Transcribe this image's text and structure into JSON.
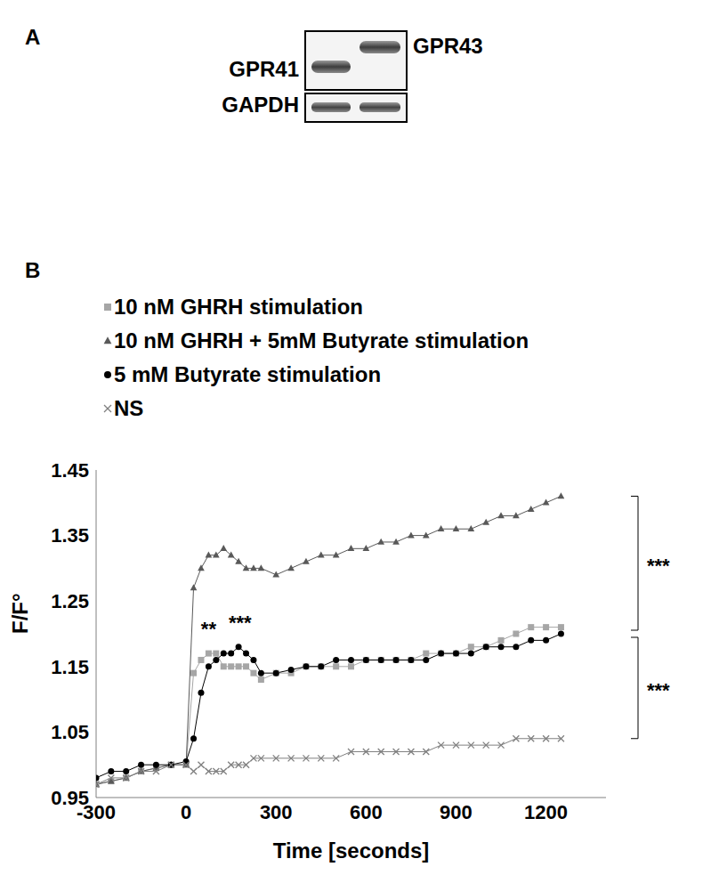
{
  "blot": {
    "panel": "A",
    "bands": [
      "GPR41",
      "GPR43"
    ],
    "loading_control": "GAPDH"
  },
  "chart_data": {
    "type": "line",
    "title": "B",
    "x_label": "Time [seconds]",
    "y_label": "F/F°",
    "x": [
      -300,
      -250,
      -200,
      -150,
      -100,
      -50,
      0,
      25,
      50,
      75,
      100,
      125,
      150,
      175,
      200,
      225,
      250,
      300,
      350,
      400,
      450,
      500,
      550,
      600,
      650,
      700,
      750,
      800,
      850,
      900,
      950,
      1000,
      1050,
      1100,
      1150,
      1200,
      1250
    ],
    "xlim": [
      -300,
      1400
    ],
    "xticks": [
      -300,
      0,
      300,
      600,
      900,
      1200
    ],
    "ylim": [
      0.95,
      1.45
    ],
    "yticks": [
      0.95,
      1.05,
      1.15,
      1.25,
      1.35,
      1.45
    ],
    "grid": false,
    "legend": "top",
    "series": [
      {
        "name": "10 nM GHRH stimulation",
        "color": "#a6a6a6",
        "marker": "square",
        "values": [
          0.97,
          0.975,
          0.98,
          0.99,
          0.995,
          1.0,
          1.0,
          1.14,
          1.16,
          1.17,
          1.17,
          1.15,
          1.15,
          1.15,
          1.15,
          1.14,
          1.13,
          1.14,
          1.14,
          1.15,
          1.15,
          1.15,
          1.15,
          1.16,
          1.16,
          1.16,
          1.16,
          1.17,
          1.17,
          1.17,
          1.18,
          1.18,
          1.19,
          1.2,
          1.21,
          1.21,
          1.21
        ]
      },
      {
        "name": "10 nM GHRH + 5mM Butyrate stimulation",
        "color": "#595959",
        "marker": "triangle",
        "values": [
          0.97,
          0.975,
          0.98,
          0.99,
          0.995,
          1.0,
          1.0,
          1.27,
          1.3,
          1.32,
          1.32,
          1.33,
          1.32,
          1.31,
          1.3,
          1.3,
          1.3,
          1.29,
          1.3,
          1.31,
          1.32,
          1.32,
          1.33,
          1.33,
          1.34,
          1.34,
          1.35,
          1.35,
          1.36,
          1.36,
          1.36,
          1.37,
          1.38,
          1.38,
          1.39,
          1.4,
          1.41
        ]
      },
      {
        "name": "5 mM Butyrate stimulation",
        "color": "#000000",
        "marker": "circle",
        "values": [
          0.98,
          0.99,
          0.99,
          1.0,
          1.0,
          1.0,
          1.005,
          1.04,
          1.11,
          1.15,
          1.16,
          1.17,
          1.17,
          1.18,
          1.17,
          1.16,
          1.14,
          1.14,
          1.145,
          1.15,
          1.15,
          1.16,
          1.16,
          1.16,
          1.16,
          1.16,
          1.16,
          1.16,
          1.17,
          1.17,
          1.17,
          1.18,
          1.18,
          1.18,
          1.19,
          1.19,
          1.2
        ]
      },
      {
        "name": "NS",
        "color": "#808080",
        "marker": "cross",
        "values": [
          0.97,
          0.98,
          0.98,
          0.99,
          0.99,
          1.0,
          1.0,
          0.99,
          1.0,
          0.99,
          0.99,
          0.99,
          1.0,
          1.0,
          1.0,
          1.01,
          1.01,
          1.01,
          1.01,
          1.01,
          1.01,
          1.01,
          1.02,
          1.02,
          1.02,
          1.02,
          1.02,
          1.02,
          1.03,
          1.03,
          1.03,
          1.03,
          1.03,
          1.04,
          1.04,
          1.04,
          1.04
        ]
      }
    ],
    "annotations": [
      {
        "text": "**",
        "x": 75,
        "y": 1.19
      },
      {
        "text": "***",
        "x": 180,
        "y": 1.2
      }
    ],
    "brackets": [
      {
        "text": "***",
        "y_from": 1.2,
        "y_to": 1.41
      },
      {
        "text": "***",
        "y_from": 1.04,
        "y_to": 1.2
      }
    ]
  }
}
